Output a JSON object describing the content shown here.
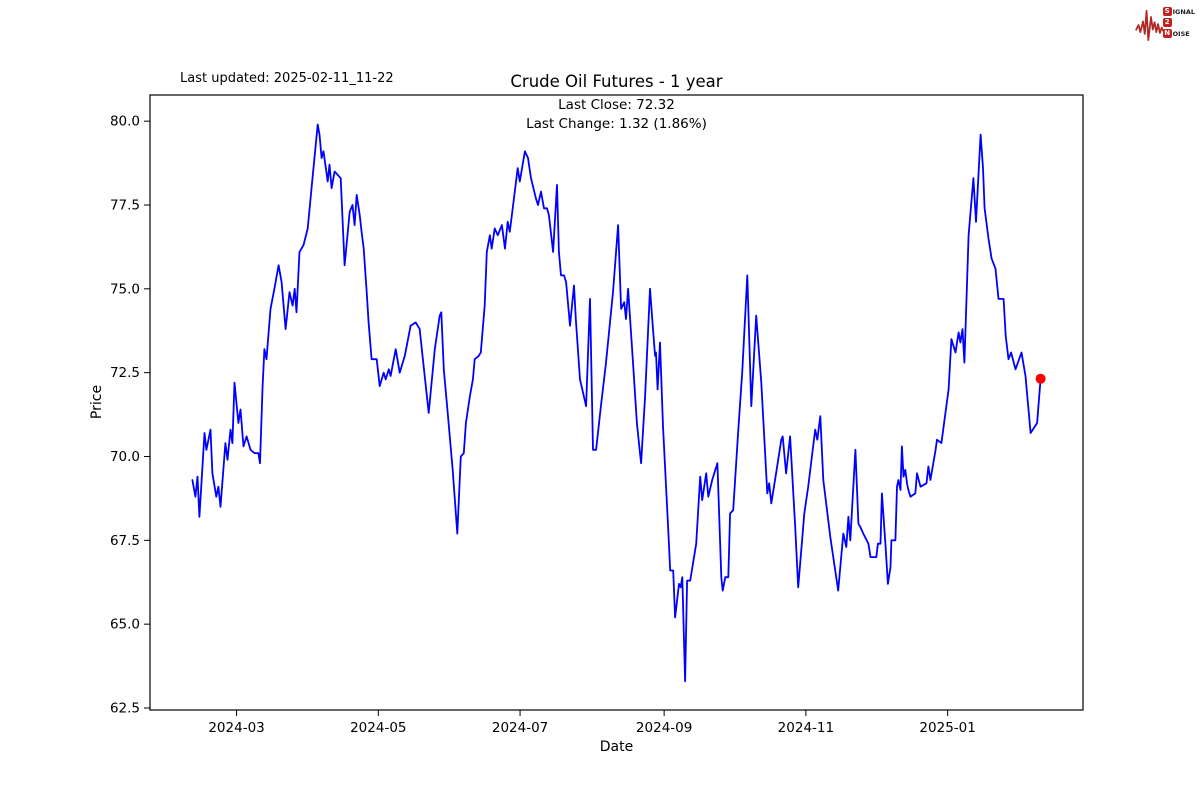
{
  "header": {
    "last_updated": "Last updated: 2025-02-11_11-22"
  },
  "logo": {
    "line1_boxed": "S",
    "line1_rest": "IGNAL",
    "line2_boxed": "2",
    "line3_boxed": "N",
    "line3_rest": "OISE"
  },
  "chart_data": {
    "type": "line",
    "title": "Crude Oil Futures - 1 year",
    "subtitle_line1": "Last Close: 72.32",
    "subtitle_line2": "Last Change: 1.32 (1.86%)",
    "last_close": 72.32,
    "last_change": 1.32,
    "last_change_pct": 1.86,
    "xlabel": "Date",
    "ylabel": "Price",
    "line_color": "#0000ff",
    "marker_color": "#ff0000",
    "axis_color": "#000000",
    "grid": false,
    "x_start_date": "2024-02-11",
    "x_end_date": "2025-02-11",
    "xlim_days": [
      -18.25,
      383.25
    ],
    "ylim": [
      62.44,
      80.78
    ],
    "x_ticks": [
      {
        "day": 19,
        "label": "2024-03"
      },
      {
        "day": 80,
        "label": "2024-05"
      },
      {
        "day": 141,
        "label": "2024-07"
      },
      {
        "day": 203,
        "label": "2024-09"
      },
      {
        "day": 264,
        "label": "2024-11"
      },
      {
        "day": 325,
        "label": "2025-01"
      }
    ],
    "y_ticks": [
      62.5,
      65.0,
      67.5,
      70.0,
      72.5,
      75.0,
      77.5,
      80.0
    ],
    "points": [
      [
        0,
        69.3
      ],
      [
        1.3,
        68.8
      ],
      [
        2.2,
        69.4
      ],
      [
        3,
        68.2
      ],
      [
        5.2,
        70.7
      ],
      [
        6,
        70.2
      ],
      [
        7.8,
        70.8
      ],
      [
        8.6,
        69.5
      ],
      [
        10.3,
        68.8
      ],
      [
        11.2,
        69.1
      ],
      [
        12.1,
        68.5
      ],
      [
        14.2,
        70.4
      ],
      [
        15.1,
        69.9
      ],
      [
        16.4,
        70.8
      ],
      [
        17.2,
        70.4
      ],
      [
        18.1,
        72.2
      ],
      [
        19.8,
        71.0
      ],
      [
        20.7,
        71.4
      ],
      [
        22,
        70.3
      ],
      [
        23.3,
        70.6
      ],
      [
        25,
        70.2
      ],
      [
        26.7,
        70.1
      ],
      [
        28.4,
        70.1
      ],
      [
        29.1,
        69.8
      ],
      [
        30.2,
        72.1
      ],
      [
        31,
        73.2
      ],
      [
        31.9,
        72.9
      ],
      [
        33.6,
        74.4
      ],
      [
        35.3,
        75.0
      ],
      [
        37.1,
        75.7
      ],
      [
        38.4,
        75.2
      ],
      [
        40.1,
        73.8
      ],
      [
        41.8,
        74.9
      ],
      [
        43.1,
        74.5
      ],
      [
        44,
        75.0
      ],
      [
        44.8,
        74.3
      ],
      [
        46.1,
        76.1
      ],
      [
        47.8,
        76.3
      ],
      [
        49.6,
        76.8
      ],
      [
        51.7,
        78.3
      ],
      [
        53.9,
        79.9
      ],
      [
        54.7,
        79.6
      ],
      [
        55.6,
        78.9
      ],
      [
        56.4,
        79.1
      ],
      [
        58.2,
        78.2
      ],
      [
        59,
        78.7
      ],
      [
        59.9,
        78.0
      ],
      [
        61.2,
        78.5
      ],
      [
        62.5,
        78.4
      ],
      [
        63.8,
        78.3
      ],
      [
        65.5,
        75.7
      ],
      [
        67.7,
        77.3
      ],
      [
        68.9,
        77.5
      ],
      [
        69.8,
        76.9
      ],
      [
        70.7,
        77.8
      ],
      [
        72,
        77.2
      ],
      [
        72.8,
        76.7
      ],
      [
        73.7,
        76.2
      ],
      [
        75,
        74.9
      ],
      [
        75.8,
        74.0
      ],
      [
        77.1,
        72.9
      ],
      [
        79.3,
        72.9
      ],
      [
        80.6,
        72.1
      ],
      [
        82.3,
        72.5
      ],
      [
        83.2,
        72.3
      ],
      [
        84.5,
        72.6
      ],
      [
        85.3,
        72.4
      ],
      [
        87.5,
        73.2
      ],
      [
        89.2,
        72.5
      ],
      [
        91.4,
        73.0
      ],
      [
        93.9,
        73.9
      ],
      [
        96.1,
        74.0
      ],
      [
        97.8,
        73.8
      ],
      [
        98.7,
        73.2
      ],
      [
        101.7,
        71.3
      ],
      [
        104.3,
        73.2
      ],
      [
        106.4,
        74.2
      ],
      [
        107.1,
        74.3
      ],
      [
        108.2,
        72.6
      ],
      [
        110,
        71.2
      ],
      [
        112,
        69.6
      ],
      [
        114,
        67.7
      ],
      [
        115.5,
        70.0
      ],
      [
        116.8,
        70.1
      ],
      [
        117.7,
        71.0
      ],
      [
        119.4,
        71.8
      ],
      [
        120.7,
        72.3
      ],
      [
        121.5,
        72.9
      ],
      [
        123.2,
        73.0
      ],
      [
        124.1,
        73.1
      ],
      [
        125.8,
        74.5
      ],
      [
        126.7,
        76.1
      ],
      [
        128,
        76.6
      ],
      [
        128.8,
        76.2
      ],
      [
        130.1,
        76.8
      ],
      [
        131.4,
        76.6
      ],
      [
        133.2,
        76.9
      ],
      [
        134.5,
        76.2
      ],
      [
        135.7,
        77.0
      ],
      [
        136.6,
        76.7
      ],
      [
        140,
        78.6
      ],
      [
        140.9,
        78.2
      ],
      [
        143.1,
        79.1
      ],
      [
        144.4,
        78.9
      ],
      [
        145.7,
        78.3
      ],
      [
        147.8,
        77.7
      ],
      [
        148.7,
        77.5
      ],
      [
        150,
        77.9
      ],
      [
        151.3,
        77.4
      ],
      [
        152.6,
        77.4
      ],
      [
        153.4,
        77.2
      ],
      [
        155.2,
        76.1
      ],
      [
        156.9,
        78.1
      ],
      [
        157.7,
        76.1
      ],
      [
        158.6,
        75.4
      ],
      [
        159.9,
        75.4
      ],
      [
        160.8,
        75.2
      ],
      [
        162.5,
        73.9
      ],
      [
        164.2,
        75.1
      ],
      [
        165,
        74.1
      ],
      [
        166.8,
        72.3
      ],
      [
        169.4,
        71.5
      ],
      [
        171.1,
        74.7
      ],
      [
        172.4,
        70.2
      ],
      [
        173.7,
        70.2
      ],
      [
        175.8,
        71.5
      ],
      [
        178,
        72.8
      ],
      [
        181,
        74.9
      ],
      [
        183.2,
        76.9
      ],
      [
        184.5,
        74.4
      ],
      [
        185.8,
        74.6
      ],
      [
        186.6,
        74.1
      ],
      [
        187.5,
        75.0
      ],
      [
        189.6,
        72.8
      ],
      [
        191.3,
        71.0
      ],
      [
        192.6,
        70.1
      ],
      [
        193.1,
        69.8
      ],
      [
        194.8,
        71.8
      ],
      [
        196.9,
        75.0
      ],
      [
        198.2,
        73.8
      ],
      [
        199.1,
        73.0
      ],
      [
        199.5,
        73.1
      ],
      [
        200.2,
        72.0
      ],
      [
        201.2,
        73.4
      ],
      [
        202.5,
        70.9
      ],
      [
        204.7,
        67.9
      ],
      [
        205.6,
        66.6
      ],
      [
        206.9,
        66.6
      ],
      [
        207.7,
        65.2
      ],
      [
        209.4,
        66.2
      ],
      [
        210.1,
        66.1
      ],
      [
        210.8,
        66.4
      ],
      [
        212,
        63.3
      ],
      [
        212.9,
        66.3
      ],
      [
        214.2,
        66.3
      ],
      [
        216.8,
        67.4
      ],
      [
        218.5,
        69.4
      ],
      [
        219.4,
        68.7
      ],
      [
        221.1,
        69.5
      ],
      [
        222,
        68.8
      ],
      [
        223.7,
        69.3
      ],
      [
        225.9,
        69.8
      ],
      [
        227.6,
        66.4
      ],
      [
        228.2,
        66.0
      ],
      [
        229.3,
        66.4
      ],
      [
        230.6,
        66.4
      ],
      [
        231.4,
        68.3
      ],
      [
        232.7,
        68.4
      ],
      [
        234.9,
        70.8
      ],
      [
        236.6,
        72.5
      ],
      [
        238.8,
        75.4
      ],
      [
        240.5,
        71.5
      ],
      [
        242.6,
        74.2
      ],
      [
        244.8,
        72.2
      ],
      [
        247.4,
        68.9
      ],
      [
        248.2,
        69.2
      ],
      [
        249.1,
        68.6
      ],
      [
        251.2,
        69.5
      ],
      [
        253.4,
        70.5
      ],
      [
        254,
        70.6
      ],
      [
        255.5,
        69.5
      ],
      [
        257.2,
        70.6
      ],
      [
        259.4,
        67.9
      ],
      [
        260.7,
        66.1
      ],
      [
        263.3,
        68.3
      ],
      [
        265,
        69.1
      ],
      [
        268,
        70.8
      ],
      [
        268.9,
        70.5
      ],
      [
        270.2,
        71.2
      ],
      [
        271.5,
        69.3
      ],
      [
        274.5,
        67.6
      ],
      [
        277.9,
        66.0
      ],
      [
        280.1,
        67.7
      ],
      [
        281.4,
        67.3
      ],
      [
        282.3,
        68.2
      ],
      [
        283.1,
        67.5
      ],
      [
        285.3,
        70.2
      ],
      [
        286.6,
        68.0
      ],
      [
        287.4,
        67.9
      ],
      [
        288.7,
        67.7
      ],
      [
        290.9,
        67.4
      ],
      [
        291.8,
        67.0
      ],
      [
        294.3,
        67.0
      ],
      [
        295,
        67.4
      ],
      [
        296.1,
        67.4
      ],
      [
        296.7,
        68.9
      ],
      [
        298.2,
        67.4
      ],
      [
        299.3,
        66.2
      ],
      [
        300.4,
        66.7
      ],
      [
        300.8,
        67.5
      ],
      [
        302.5,
        67.5
      ],
      [
        303.2,
        69.1
      ],
      [
        303.8,
        69.3
      ],
      [
        304.7,
        69.0
      ],
      [
        305.3,
        70.3
      ],
      [
        306,
        69.4
      ],
      [
        306.8,
        69.6
      ],
      [
        307.5,
        69.2
      ],
      [
        308.1,
        69.0
      ],
      [
        309,
        68.8
      ],
      [
        311.1,
        68.9
      ],
      [
        311.8,
        69.5
      ],
      [
        313.3,
        69.1
      ],
      [
        315.9,
        69.2
      ],
      [
        316.7,
        69.7
      ],
      [
        317.6,
        69.3
      ],
      [
        319.8,
        70.2
      ],
      [
        320.4,
        70.5
      ],
      [
        322.3,
        70.4
      ],
      [
        325.4,
        72.0
      ],
      [
        326.6,
        73.5
      ],
      [
        328.4,
        73.1
      ],
      [
        329.7,
        73.7
      ],
      [
        330.5,
        73.4
      ],
      [
        331.4,
        73.8
      ],
      [
        332.2,
        72.8
      ],
      [
        334,
        76.6
      ],
      [
        336.1,
        78.3
      ],
      [
        337.2,
        77.0
      ],
      [
        339.2,
        79.6
      ],
      [
        340.2,
        78.6
      ],
      [
        340.9,
        77.4
      ],
      [
        342.6,
        76.5
      ],
      [
        343.9,
        75.9
      ],
      [
        345.6,
        75.6
      ],
      [
        346.9,
        74.7
      ],
      [
        349.1,
        74.7
      ],
      [
        350,
        73.6
      ],
      [
        351.2,
        72.9
      ],
      [
        352.3,
        73.1
      ],
      [
        354.2,
        72.6
      ],
      [
        356.8,
        73.1
      ],
      [
        358.5,
        72.4
      ],
      [
        360.7,
        70.7
      ],
      [
        363.5,
        71.0
      ],
      [
        365,
        72.32
      ]
    ]
  }
}
